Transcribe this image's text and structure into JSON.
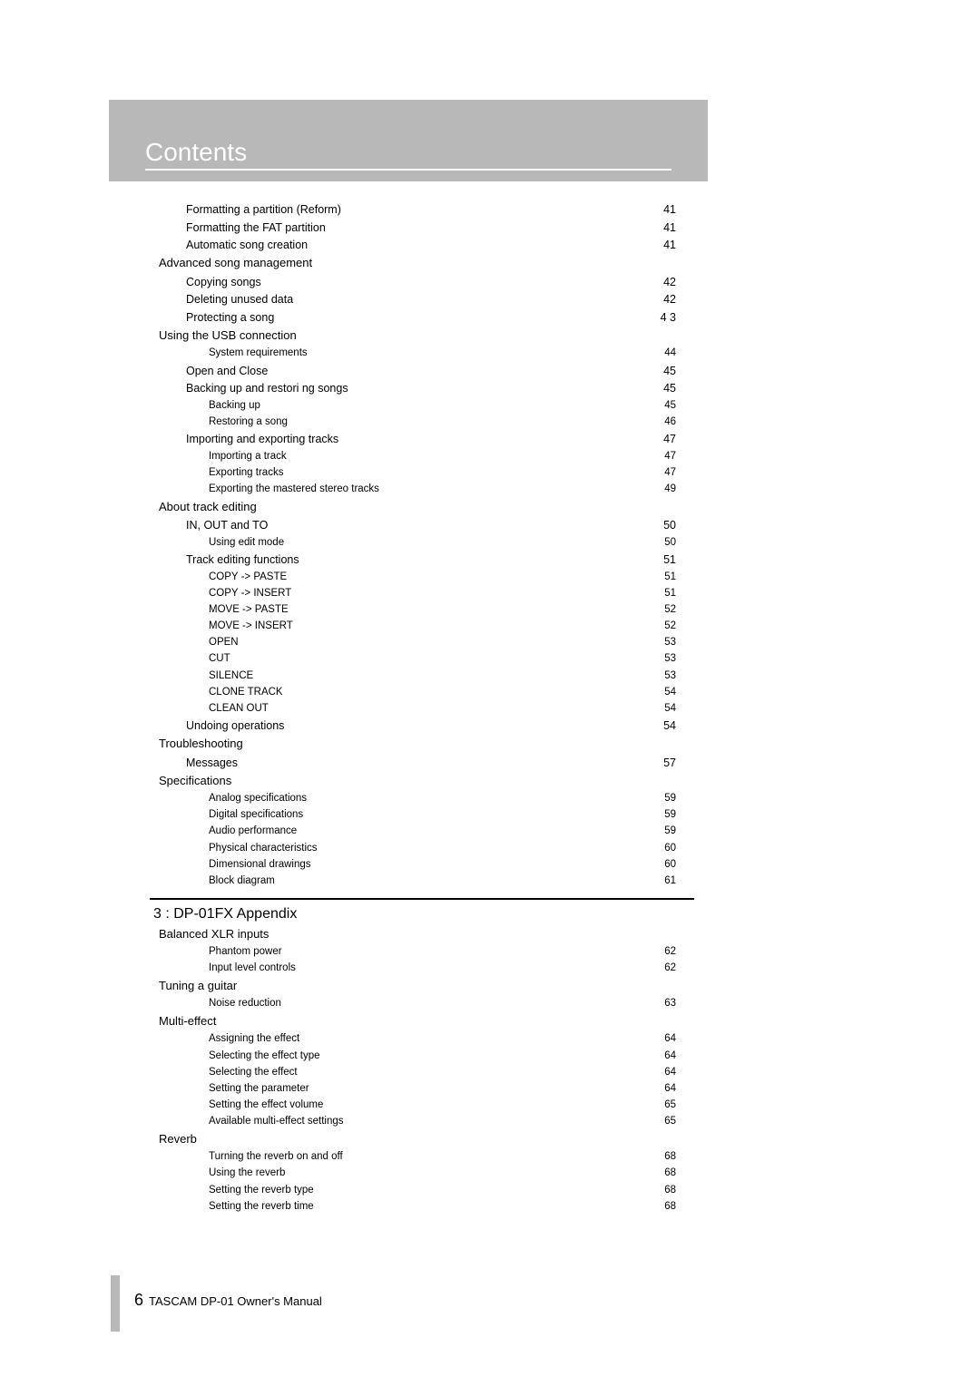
{
  "header_title": "Contents",
  "footer": {
    "page_number": "6",
    "text": "TASCAM DP-01 Owner's Manual"
  },
  "colors": {
    "band": "#b8b8b8",
    "text": "#000000",
    "bg": "#ffffff"
  },
  "toc": {
    "section1": [
      {
        "level": 2,
        "label": "Formatting a partition (Reform)",
        "page": "41"
      },
      {
        "level": 2,
        "label": "Formatting the FAT partition",
        "page": "41"
      },
      {
        "level": 2,
        "label": "Automatic song creation",
        "page": "41"
      },
      {
        "level": 1,
        "label": "Advanced song management",
        "page": ""
      },
      {
        "level": 2,
        "label": "Copying songs",
        "page": "42"
      },
      {
        "level": 2,
        "label": "Deleting unused data",
        "page": "42"
      },
      {
        "level": 2,
        "label": "Protecting a song",
        "page": "4 3"
      },
      {
        "level": 1,
        "label": "Using the USB connection",
        "page": ""
      },
      {
        "level": 3,
        "label": "System requirements",
        "page": "44"
      },
      {
        "level": 2,
        "label": "Open  and  Close",
        "page": "45"
      },
      {
        "level": 2,
        "label": "Backing up and restori  ng songs",
        "page": "45"
      },
      {
        "level": 3,
        "label": "Backing up",
        "page": "45"
      },
      {
        "level": 3,
        "label": "Restoring a song",
        "page": "46"
      },
      {
        "level": 2,
        "label": "Importing and exporting tracks",
        "page": "47"
      },
      {
        "level": 3,
        "label": "Importing a track",
        "page": "47"
      },
      {
        "level": 3,
        "label": "Exporting tracks",
        "page": "47"
      },
      {
        "level": 3,
        "label": "Exporting the mastered stereo tracks",
        "page": "49"
      },
      {
        "level": 1,
        "label": "About track editing",
        "page": ""
      },
      {
        "level": 2,
        "label": "IN, OUT and TO",
        "page": "50"
      },
      {
        "level": 3,
        "label": "Using edit mode",
        "page": "50"
      },
      {
        "level": 2,
        "label": "Track editing functions",
        "page": "51"
      },
      {
        "level": 3,
        "label": "COPY -> PASTE",
        "page": "51"
      },
      {
        "level": 3,
        "label": "COPY -> INSERT",
        "page": "51"
      },
      {
        "level": 3,
        "label": "MOVE -> PASTE",
        "page": "52"
      },
      {
        "level": 3,
        "label": "MOVE -> INSERT",
        "page": "52"
      },
      {
        "level": 3,
        "label": "OPEN",
        "page": "53"
      },
      {
        "level": 3,
        "label": "CUT",
        "page": "53"
      },
      {
        "level": 3,
        "label": "SILENCE",
        "page": "53"
      },
      {
        "level": 3,
        "label": "CLONE TRACK",
        "page": "54"
      },
      {
        "level": 3,
        "label": "CLEAN OUT",
        "page": "54"
      },
      {
        "level": 2,
        "label": "Undoing operations",
        "page": "54"
      },
      {
        "level": 1,
        "label": "Troubleshooting",
        "page": ""
      },
      {
        "level": 2,
        "label": "Messages",
        "page": "57"
      },
      {
        "level": 1,
        "label": "Specifications",
        "page": ""
      },
      {
        "level": 3,
        "label": "Analog specifications",
        "page": "59"
      },
      {
        "level": 3,
        "label": "Digital specifications",
        "page": "59"
      },
      {
        "level": 3,
        "label": "Audio performance",
        "page": "59"
      },
      {
        "level": 3,
        "label": "Physical characteristics",
        "page": "60"
      },
      {
        "level": 3,
        "label": "Dimensional drawings",
        "page": "60"
      },
      {
        "level": 3,
        "label": "Block diagram",
        "page": "61"
      }
    ],
    "chapter2_title": "3 : DP-01FX Appendix",
    "section2": [
      {
        "level": 1,
        "label": "Balanced XLR inputs",
        "page": ""
      },
      {
        "level": 3,
        "label": "Phantom power",
        "page": "62"
      },
      {
        "level": 3,
        "label": "Input level controls",
        "page": "62"
      },
      {
        "level": 1,
        "label": "Tuning a guitar",
        "page": ""
      },
      {
        "level": 3,
        "label": "Noise reduction",
        "page": "63"
      },
      {
        "level": 1,
        "label": "Multi-effect",
        "page": ""
      },
      {
        "level": 3,
        "label": "Assigning the effect",
        "page": "64"
      },
      {
        "level": 3,
        "label": "Selecting the effect type",
        "page": "64"
      },
      {
        "level": 3,
        "label": "Selecting the effect",
        "page": "64"
      },
      {
        "level": 3,
        "label": "Setting the parameter",
        "page": "64"
      },
      {
        "level": 3,
        "label": "Setting the effect volume",
        "page": "65"
      },
      {
        "level": 3,
        "label": "Available multi-effect settings",
        "page": "65"
      },
      {
        "level": 1,
        "label": "Reverb",
        "page": ""
      },
      {
        "level": 3,
        "label": "Turning the reverb on and off",
        "page": "68"
      },
      {
        "level": 3,
        "label": "Using the reverb",
        "page": "68"
      },
      {
        "level": 3,
        "label": "Setting the reverb type",
        "page": "68"
      },
      {
        "level": 3,
        "label": "Setting the reverb time",
        "page": "68"
      }
    ]
  }
}
